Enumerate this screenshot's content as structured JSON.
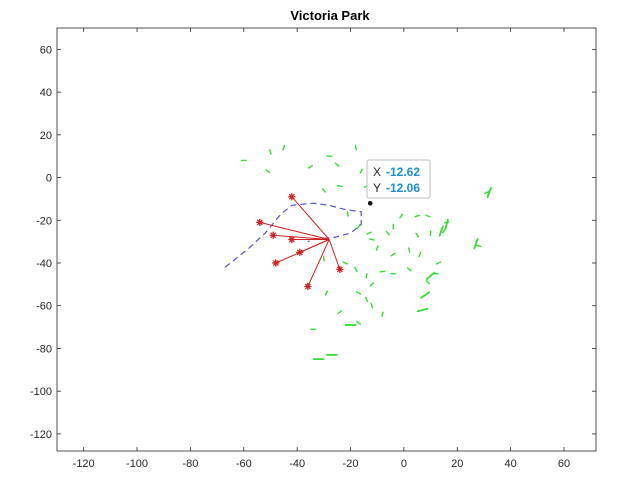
{
  "chart_data": {
    "type": "scatter",
    "title": "Victoria Park",
    "xlabel": "",
    "ylabel": "",
    "xlim": [
      -130,
      72
    ],
    "ylim": [
      -128,
      70
    ],
    "x_ticks": [
      -120,
      -100,
      -80,
      -60,
      -40,
      -20,
      0,
      20,
      40,
      60
    ],
    "y_ticks": [
      60,
      40,
      20,
      0,
      -20,
      -40,
      -60,
      -80,
      -100,
      -120
    ],
    "box": true,
    "grid": false,
    "colors": {
      "landmarks": "#33dd33",
      "trajectory": "#5555cc",
      "observed": "#cc2222",
      "rays": "#cc2222",
      "datatip_value": "#1a8fd6",
      "axes": "#262626"
    },
    "series": [
      {
        "name": "landmarks",
        "style": "green dashes",
        "points": [
          [
            -60,
            8
          ],
          [
            -51,
            3
          ],
          [
            -50,
            12
          ],
          [
            -45,
            14
          ],
          [
            -35,
            5
          ],
          [
            -28,
            10
          ],
          [
            -25,
            6
          ],
          [
            -18,
            14
          ],
          [
            -16,
            3
          ],
          [
            -14,
            -4
          ],
          [
            -24,
            -4
          ],
          [
            -30,
            -6
          ],
          [
            -21,
            -17
          ],
          [
            -17,
            -23
          ],
          [
            -13,
            -26
          ],
          [
            -12,
            -29
          ],
          [
            -6,
            -26
          ],
          [
            -4,
            -23
          ],
          [
            -1,
            -18
          ],
          [
            5,
            -18
          ],
          [
            9,
            -18
          ],
          [
            5,
            -27
          ],
          [
            10,
            -26
          ],
          [
            15,
            -25
          ],
          [
            16,
            -21
          ],
          [
            -22,
            -40
          ],
          [
            -18,
            -43
          ],
          [
            -14,
            -46
          ],
          [
            -12,
            -50
          ],
          [
            -8,
            -44
          ],
          [
            -17,
            -54
          ],
          [
            -14,
            -57
          ],
          [
            -8,
            -64
          ],
          [
            -24,
            -63
          ],
          [
            -34,
            -71
          ],
          [
            -17,
            -68
          ],
          [
            -12,
            -60
          ],
          [
            -10,
            -33
          ],
          [
            -4,
            -36
          ],
          [
            -4,
            -45
          ],
          [
            2,
            -43
          ],
          [
            2,
            -34
          ],
          [
            6,
            -36
          ],
          [
            13,
            -40
          ],
          [
            12,
            -45
          ],
          [
            9,
            -49
          ],
          [
            -30,
            -38
          ],
          [
            -29,
            -54
          ],
          [
            31,
            -7
          ],
          [
            28,
            -32
          ]
        ],
        "bars": [
          [
            8,
            -55
          ],
          [
            10,
            -46
          ],
          [
            7,
            -62
          ],
          [
            27,
            -31
          ],
          [
            32,
            -7
          ],
          [
            -27,
            -83
          ],
          [
            -32,
            -85
          ],
          [
            -20,
            -69
          ],
          [
            16,
            -22
          ],
          [
            14,
            -25
          ]
        ]
      },
      {
        "name": "trajectory",
        "style": "blue dashed line",
        "points": [
          [
            -67,
            -42
          ],
          [
            -62,
            -37
          ],
          [
            -58,
            -33
          ],
          [
            -52,
            -26
          ],
          [
            -46,
            -17
          ],
          [
            -42,
            -13
          ],
          [
            -34,
            -12
          ],
          [
            -28,
            -13
          ],
          [
            -22,
            -15
          ],
          [
            -16,
            -16
          ],
          [
            -16,
            -22
          ],
          [
            -20,
            -26
          ],
          [
            -26,
            -28
          ],
          [
            -34,
            -29
          ],
          [
            -36,
            -30
          ]
        ]
      },
      {
        "name": "observed landmarks",
        "style": "red asterisk",
        "origin": [
          -28,
          -29
        ],
        "points": [
          [
            -42,
            -9
          ],
          [
            -54,
            -21
          ],
          [
            -49,
            -27
          ],
          [
            -42,
            -29
          ],
          [
            -39,
            -35
          ],
          [
            -48,
            -40
          ],
          [
            -36,
            -51
          ],
          [
            -24,
            -43
          ]
        ]
      }
    ],
    "current_position": [
      -12.62,
      -12.06
    ],
    "datatip": {
      "x_label": "X",
      "x_value": "-12.62",
      "y_label": "Y",
      "y_value": "-12.06"
    }
  }
}
